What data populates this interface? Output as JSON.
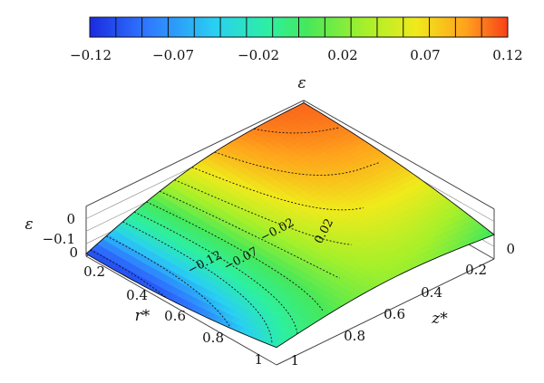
{
  "chart_data": {
    "type": "surface3d",
    "colorbar": {
      "label": "ε",
      "tick_labels": [
        "−0.12",
        "−0.07",
        "−0.02",
        "0.02",
        "0.07",
        "0.12"
      ],
      "min": -0.12,
      "max": 0.12,
      "segments": 16,
      "colors": [
        "#1a2be0",
        "#2f74ff",
        "#29d0f2",
        "#2df0a0",
        "#46e85a",
        "#a6f02a",
        "#f0ea1c",
        "#ffa21c",
        "#f8401a"
      ]
    },
    "axes": {
      "r": {
        "label": "r*",
        "ticks": [
          "0",
          "0.2",
          "0.4",
          "0.6",
          "0.8",
          "1"
        ],
        "range": [
          0,
          1
        ]
      },
      "z": {
        "label": "z*",
        "ticks": [
          "0",
          "0.2",
          "0.4",
          "0.6",
          "0.8",
          "1"
        ],
        "range": [
          0,
          1
        ]
      },
      "eps": {
        "label": "ε",
        "ticks": [
          "0",
          "−0.1"
        ]
      }
    },
    "contour_labels": [
      "−0.12",
      "−0.07",
      "−0.02",
      "0.02"
    ],
    "surface": {
      "model": "eps = (1 - r^2)*(0.12*z - 0.12*(1 - z)) approx",
      "min": -0.12,
      "max": 0.12
    }
  }
}
